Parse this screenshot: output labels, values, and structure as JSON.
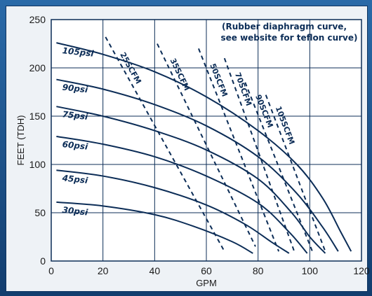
{
  "chart_data": {
    "type": "line",
    "xlabel": "GPM",
    "ylabel": "FEET (TDH)",
    "xlim": [
      0,
      120
    ],
    "ylim": [
      0,
      250
    ],
    "x_ticks": [
      "0",
      "20",
      "40",
      "60",
      "80",
      "100",
      "120"
    ],
    "y_ticks": [
      "0",
      "50",
      "100",
      "150",
      "200",
      "250"
    ],
    "grid": true,
    "annotation": [
      "(Rubber diaphragm curve,",
      "see website for teflon curve)"
    ],
    "pressure_curves": [
      {
        "name": "105psi",
        "points": [
          [
            2,
            226
          ],
          [
            20,
            214
          ],
          [
            40,
            196
          ],
          [
            60,
            170
          ],
          [
            80,
            135
          ],
          [
            95,
            100
          ],
          [
            105,
            65
          ],
          [
            112,
            30
          ],
          [
            116,
            10
          ]
        ]
      },
      {
        "name": "90psi",
        "points": [
          [
            2,
            188
          ],
          [
            20,
            178
          ],
          [
            40,
            162
          ],
          [
            60,
            140
          ],
          [
            80,
            108
          ],
          [
            95,
            70
          ],
          [
            105,
            35
          ],
          [
            111,
            10
          ]
        ]
      },
      {
        "name": "75psi",
        "points": [
          [
            2,
            160
          ],
          [
            20,
            150
          ],
          [
            40,
            135
          ],
          [
            60,
            115
          ],
          [
            80,
            85
          ],
          [
            93,
            50
          ],
          [
            100,
            25
          ],
          [
            106,
            8
          ]
        ]
      },
      {
        "name": "60psi",
        "points": [
          [
            2,
            129
          ],
          [
            20,
            121
          ],
          [
            40,
            108
          ],
          [
            60,
            88
          ],
          [
            80,
            60
          ],
          [
            92,
            30
          ],
          [
            99,
            8
          ]
        ]
      },
      {
        "name": "45psi",
        "points": [
          [
            2,
            94
          ],
          [
            20,
            88
          ],
          [
            40,
            76
          ],
          [
            60,
            58
          ],
          [
            75,
            38
          ],
          [
            85,
            20
          ],
          [
            92,
            8
          ]
        ]
      },
      {
        "name": "30psi",
        "points": [
          [
            2,
            61
          ],
          [
            20,
            57
          ],
          [
            40,
            48
          ],
          [
            55,
            36
          ],
          [
            70,
            20
          ],
          [
            78,
            8
          ]
        ]
      }
    ],
    "air_consumption_lines": [
      {
        "name": "25SCFM",
        "points": [
          [
            21,
            232
          ],
          [
            67,
            10
          ]
        ]
      },
      {
        "name": "35SCFM",
        "points": [
          [
            41,
            225
          ],
          [
            79,
            15
          ]
        ]
      },
      {
        "name": "50SCFM",
        "points": [
          [
            57,
            220
          ],
          [
            88,
            10
          ]
        ]
      },
      {
        "name": "70SCFM",
        "points": [
          [
            67,
            210
          ],
          [
            94,
            10
          ]
        ]
      },
      {
        "name": "90SCFM",
        "points": [
          [
            75,
            185
          ],
          [
            101,
            10
          ]
        ]
      },
      {
        "name": "105SCFM",
        "points": [
          [
            83,
            172
          ],
          [
            106,
            10
          ]
        ]
      }
    ]
  }
}
